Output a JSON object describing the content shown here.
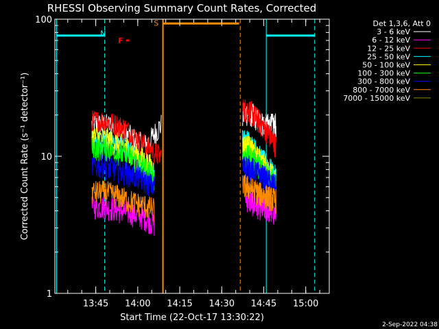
{
  "chart_data": {
    "type": "line",
    "title": "RHESSI Observing Summary Count Rates, Corrected",
    "xlabel": "Start Time (22-Oct-17 13:30:22)",
    "ylabel": "Corrected Count Rate (s⁻¹ detector⁻¹)",
    "y_scale": "log",
    "ylim": [
      1,
      100
    ],
    "xlim_minutes": [
      0,
      98
    ],
    "x_ticks": [
      {
        "label": "13:45",
        "minutes": 14.6
      },
      {
        "label": "14:00",
        "minutes": 29.6
      },
      {
        "label": "14:15",
        "minutes": 44.6
      },
      {
        "label": "14:30",
        "minutes": 59.6
      },
      {
        "label": "14:45",
        "minutes": 74.6
      },
      {
        "label": "15:00",
        "minutes": 89.6
      }
    ],
    "y_ticks": [
      {
        "label": "1",
        "value": 1
      },
      {
        "label": "10",
        "value": 10
      },
      {
        "label": "100",
        "value": 100
      }
    ],
    "legend": {
      "header": "Det 1,3,6, Att 0",
      "placement": "outside-right"
    },
    "series": [
      {
        "name": "3 - 6 keV",
        "color": "#ffffff",
        "segments": [
          {
            "x": [
              13.2,
              18,
              22,
              24,
              27,
              29,
              32,
              34,
              36,
              38
            ],
            "y": [
              17,
              17,
              16.5,
              15,
              14,
              13,
              12,
              13,
              15,
              17
            ]
          },
          {
            "x": [
              67,
              69,
              71,
              73,
              75,
              77,
              79
            ],
            "y": [
              20,
              21,
              20,
              18,
              17,
              17,
              17
            ]
          }
        ]
      },
      {
        "name": "6 - 12 keV",
        "color": "#ff00ff",
        "segments": [
          {
            "x": [
              13.2,
              18,
              22,
              26,
              30,
              33,
              35.5
            ],
            "y": [
              4.3,
              4.3,
              4.1,
              3.9,
              3.7,
              3.5,
              3.2
            ]
          },
          {
            "x": [
              68,
              71,
              74,
              77,
              79
            ],
            "y": [
              5,
              4.5,
              4.2,
              4,
              3.8
            ]
          }
        ]
      },
      {
        "name": "12 - 25 keV",
        "color": "#ff0000",
        "segments": [
          {
            "x": [
              13.2,
              18,
              22,
              25,
              28,
              31,
              34,
              36,
              38
            ],
            "y": [
              18,
              18,
              17,
              16,
              14,
              12.5,
              11.5,
              10.5,
              10
            ]
          },
          {
            "x": [
              67,
              69,
              71,
              73,
              75,
              77,
              79
            ],
            "y": [
              22,
              22,
              20,
              18,
              16,
              14,
              12
            ]
          }
        ]
      },
      {
        "name": "25 - 50 keV",
        "color": "#00ffff",
        "segments": [
          {
            "x": [
              13.2,
              18,
              22,
              26,
              30,
              33,
              35.5
            ],
            "y": [
              13,
              13,
              12,
              11,
              9.5,
              8.5,
              7.5
            ]
          },
          {
            "x": [
              67,
              69,
              71,
              73,
              75,
              77,
              79
            ],
            "y": [
              13,
              13,
              11.5,
              10,
              9,
              8,
              7
            ]
          }
        ]
      },
      {
        "name": "50 - 100 keV",
        "color": "#ffff00",
        "segments": [
          {
            "x": [
              13.2,
              18,
              22,
              26,
              30,
              33,
              35.5
            ],
            "y": [
              14,
              13.5,
              12.5,
              11.5,
              10,
              9,
              8
            ]
          },
          {
            "x": [
              67,
              69,
              71,
              73,
              75,
              77,
              79
            ],
            "y": [
              12,
              12,
              10.5,
              9.5,
              8.5,
              7.5,
              6.5
            ]
          }
        ]
      },
      {
        "name": "100 - 300 keV",
        "color": "#00ff00",
        "segments": [
          {
            "x": [
              13.2,
              18,
              22,
              26,
              30,
              33,
              35.5
            ],
            "y": [
              11.5,
              11.5,
              10.8,
              10,
              9,
              8,
              7
            ]
          },
          {
            "x": [
              67,
              69,
              71,
              73,
              75,
              77,
              79
            ],
            "y": [
              10,
              10,
              9.5,
              8.5,
              8,
              7,
              6
            ]
          }
        ]
      },
      {
        "name": "300 - 800 keV",
        "color": "#0000ff",
        "segments": [
          {
            "x": [
              13.2,
              18,
              22,
              26,
              30,
              33,
              35.5
            ],
            "y": [
              8.5,
              8.5,
              8,
              7.5,
              7,
              6.5,
              6
            ]
          },
          {
            "x": [
              67,
              69,
              71,
              73,
              75,
              77,
              79
            ],
            "y": [
              8.5,
              8.5,
              8,
              7.5,
              7,
              6.5,
              6
            ]
          }
        ]
      },
      {
        "name": "800 - 7000 keV",
        "color": "#ff8c00",
        "segments": [
          {
            "x": [
              13.2,
              18,
              22,
              26,
              30,
              33,
              35.5
            ],
            "y": [
              5.5,
              5.5,
              5.2,
              4.8,
              4.5,
              4.3,
              4.1
            ]
          },
          {
            "x": [
              67,
              69,
              71,
              73,
              75,
              77,
              79
            ],
            "y": [
              6.2,
              6,
              5.7,
              5.4,
              5.2,
              5,
              4.8
            ]
          }
        ]
      },
      {
        "name": "7000 - 15000 keV",
        "color": "#8b8b00",
        "segments": []
      }
    ],
    "annotations": [
      {
        "label": "N",
        "color": "#00ffff",
        "minutes": 17.2
      },
      {
        "label": "F",
        "color": "#ff0000",
        "minutes": 23.5
      },
      {
        "label": "S",
        "color": "#ff8c00",
        "minutes": 36.2
      }
    ]
  },
  "timestamp": "2-Sep-2022 04:38",
  "colors": {
    "background": "#000000",
    "axes": "#ffffff",
    "night": "#00ffff",
    "saa": "#ff8c00",
    "flare": "#ff0000"
  }
}
